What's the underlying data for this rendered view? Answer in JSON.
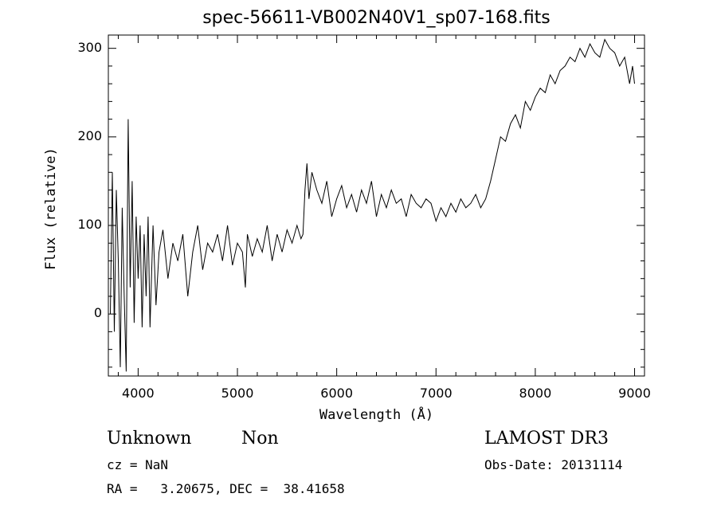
{
  "chart_data": {
    "type": "line",
    "title": "spec-56611-VB002N40V1_sp07-168.fits",
    "xlabel": "Wavelength (Å)",
    "ylabel": "Flux (relative)",
    "xlim": [
      3700,
      9100
    ],
    "ylim": [
      -70,
      315
    ],
    "x_ticks": [
      4000,
      5000,
      6000,
      7000,
      8000,
      9000
    ],
    "x_tick_labels": [
      "4000",
      "5000",
      "6000",
      "7000",
      "8000",
      "9000"
    ],
    "y_ticks": [
      0,
      100,
      200,
      300
    ],
    "y_tick_labels": [
      "0",
      "100",
      "200",
      "300"
    ],
    "grid": false,
    "legend": "none",
    "line_color": "#000000",
    "series": [
      {
        "x": [
          3720,
          3740,
          3760,
          3780,
          3800,
          3820,
          3840,
          3860,
          3880,
          3900,
          3920,
          3940,
          3960,
          3980,
          4000,
          4020,
          4040,
          4060,
          4080,
          4100,
          4120,
          4150,
          4180,
          4210,
          4250,
          4300,
          4350,
          4400,
          4450,
          4500,
          4550,
          4600,
          4650,
          4700,
          4750,
          4800,
          4850,
          4900,
          4950,
          5000,
          5050,
          5080,
          5100,
          5150,
          5200,
          5250,
          5300,
          5350,
          5400,
          5450,
          5500,
          5550,
          5600,
          5640,
          5660,
          5680,
          5700,
          5720,
          5750,
          5800,
          5850,
          5900,
          5950,
          6000,
          6050,
          6100,
          6150,
          6200,
          6250,
          6300,
          6350,
          6400,
          6450,
          6500,
          6550,
          6600,
          6650,
          6700,
          6750,
          6800,
          6850,
          6900,
          6950,
          7000,
          7050,
          7100,
          7150,
          7200,
          7250,
          7300,
          7350,
          7400,
          7450,
          7500,
          7550,
          7600,
          7650,
          7700,
          7750,
          7800,
          7850,
          7900,
          7950,
          8000,
          8050,
          8100,
          8150,
          8200,
          8250,
          8300,
          8350,
          8400,
          8450,
          8500,
          8550,
          8600,
          8650,
          8700,
          8750,
          8800,
          8850,
          8900,
          8950,
          8980,
          9000
        ],
        "y": [
          0,
          160,
          -20,
          140,
          60,
          -60,
          120,
          20,
          -65,
          220,
          30,
          150,
          -10,
          110,
          40,
          100,
          -15,
          90,
          20,
          110,
          -15,
          100,
          10,
          70,
          95,
          40,
          80,
          60,
          90,
          20,
          70,
          100,
          50,
          80,
          70,
          90,
          60,
          100,
          55,
          80,
          70,
          30,
          90,
          65,
          85,
          70,
          100,
          60,
          90,
          70,
          95,
          80,
          100,
          85,
          90,
          140,
          170,
          130,
          160,
          140,
          125,
          150,
          110,
          130,
          145,
          120,
          135,
          115,
          140,
          125,
          150,
          110,
          135,
          120,
          140,
          125,
          130,
          110,
          135,
          125,
          120,
          130,
          125,
          105,
          120,
          110,
          125,
          115,
          130,
          120,
          125,
          135,
          120,
          130,
          150,
          175,
          200,
          195,
          215,
          225,
          210,
          240,
          230,
          245,
          255,
          250,
          270,
          260,
          275,
          280,
          290,
          285,
          300,
          290,
          305,
          295,
          290,
          310,
          300,
          295,
          280,
          290,
          260,
          280,
          260
        ]
      }
    ],
    "annotations": {
      "object_class": "Unknown",
      "object_subclass": "Non",
      "survey": "LAMOST DR3",
      "cz": "cz = NaN",
      "obs_date": "Obs-Date: 20131114",
      "ra_dec": "RA =   3.20675, DEC =  38.41658"
    }
  }
}
